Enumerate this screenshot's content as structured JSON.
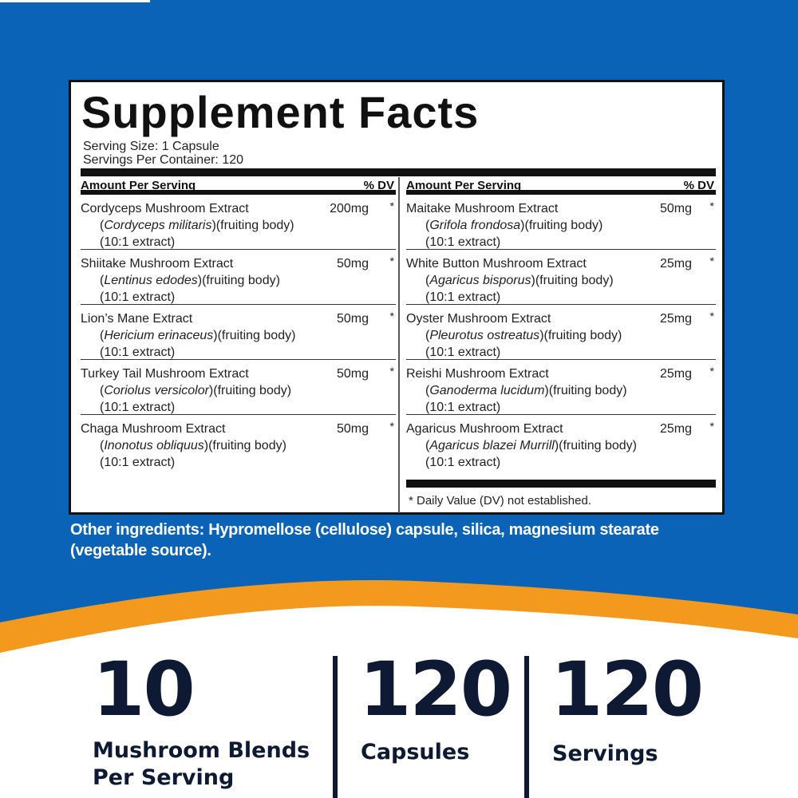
{
  "colors": {
    "background_blue": "#0b63b8",
    "accent_orange": "#f39a1e",
    "text_navy": "#0e1a33"
  },
  "facts": {
    "title": "Supplement Facts",
    "serving_size": "Serving Size: 1 Capsule",
    "servings_per_container": "Servings Per Container: 120",
    "header_left": "Amount Per Serving",
    "header_dv": "% DV",
    "left_rows": [
      {
        "name": "Cordyceps Mushroom Extract",
        "sci_open": "(",
        "sci": "Cordyceps militaris",
        "sci_close": ")(fruiting body)",
        "ratio": "(10:1 extract)",
        "amount": "200mg",
        "dv": "*"
      },
      {
        "name": "Shiitake Mushroom Extract",
        "sci_open": "(",
        "sci": "Lentinus edodes",
        "sci_close": ")(fruiting body)",
        "ratio": "(10:1 extract)",
        "amount": "50mg",
        "dv": "*"
      },
      {
        "name": "Lion’s Mane Extract",
        "sci_open": "(",
        "sci": "Hericium erinaceus",
        "sci_close": ")(fruiting body)",
        "ratio": "(10:1 extract)",
        "amount": "50mg",
        "dv": "*"
      },
      {
        "name": "Turkey Tail Mushroom Extract",
        "sci_open": "(",
        "sci": "Coriolus versicolor",
        "sci_close": ")(fruiting body)",
        "ratio": "(10:1 extract)",
        "amount": "50mg",
        "dv": "*"
      },
      {
        "name": "Chaga Mushroom Extract",
        "sci_open": "(",
        "sci": "Inonotus obliquus",
        "sci_close": ")(fruiting body)",
        "ratio": "(10:1 extract)",
        "amount": "50mg",
        "dv": "*"
      }
    ],
    "right_rows": [
      {
        "name": "Maitake Mushroom Extract",
        "sci_open": "(",
        "sci": "Grifola frondosa",
        "sci_close": ")(fruiting body)",
        "ratio": "(10:1 extract)",
        "amount": "50mg",
        "dv": "*"
      },
      {
        "name": "White Button Mushroom Extract",
        "sci_open": "(",
        "sci": "Agaricus bisporus",
        "sci_close": ")(fruiting body)",
        "ratio": "(10:1 extract)",
        "amount": "25mg",
        "dv": "*"
      },
      {
        "name": "Oyster Mushroom Extract",
        "sci_open": "(",
        "sci": "Pleurotus ostreatus",
        "sci_close": ")(fruiting body)",
        "ratio": "(10:1 extract)",
        "amount": "25mg",
        "dv": "*"
      },
      {
        "name": "Reishi Mushroom Extract",
        "sci_open": "(",
        "sci": "Ganoderma lucidum",
        "sci_close": ")(fruiting body)",
        "ratio": "(10:1 extract)",
        "amount": "25mg",
        "dv": "*"
      },
      {
        "name": "Agaricus Mushroom Extract",
        "sci_open": "(",
        "sci": "Agaricus blazei Murrill",
        "sci_close": ")(fruiting body)",
        "ratio": "(10:1 extract)",
        "amount": "25mg",
        "dv": "*"
      }
    ],
    "footnote": "* Daily Value (DV) not established."
  },
  "other_ingredients": "Other ingredients: Hypromellose (cellulose) capsule, silica, magnesium stearate (vegetable source).",
  "stats": [
    {
      "value": "10",
      "label_line1": "Mushroom Blends",
      "label_line2": "Per Serving"
    },
    {
      "value": "120",
      "label_line1": "Capsules",
      "label_line2": ""
    },
    {
      "value": "120",
      "label_line1": "Servings",
      "label_line2": ""
    }
  ]
}
